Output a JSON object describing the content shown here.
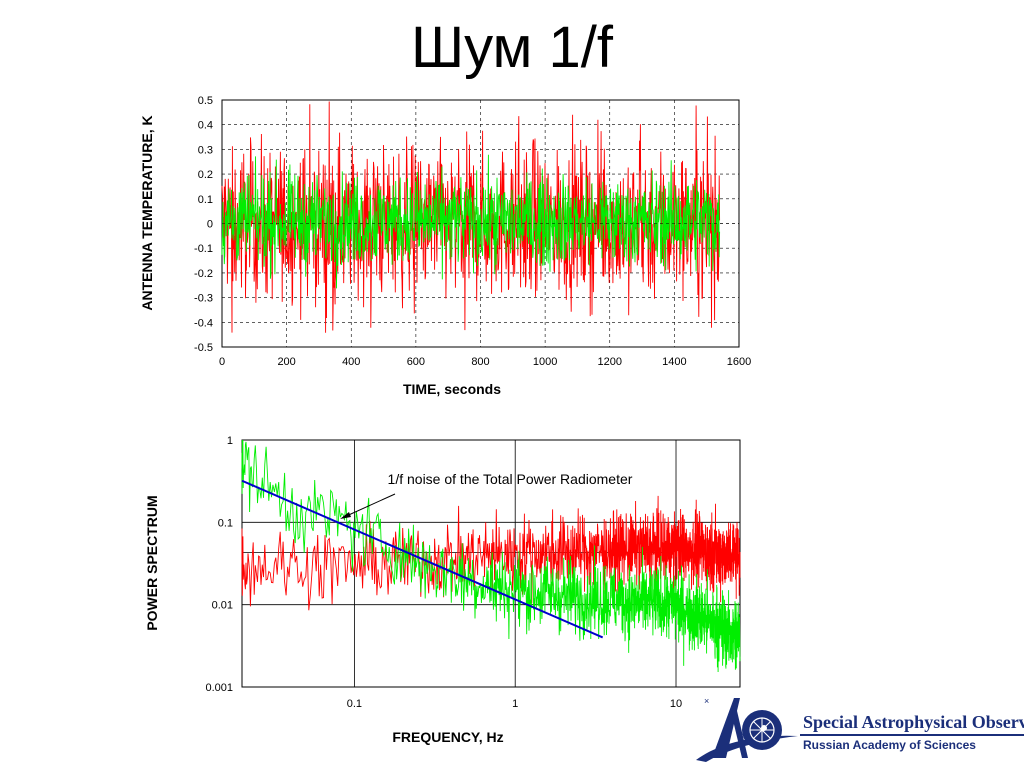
{
  "slide": {
    "title": "Шум 1/f"
  },
  "colors": {
    "signal": "#ff0000",
    "reference": "#00ee00",
    "fit": "#0000cc",
    "grid": "#000000"
  },
  "logo": {
    "icon": "sao-emblem-icon",
    "line1": "Special Astrophysical Observatory",
    "line2": "Russian Academy of Sciences"
  },
  "chart_data": [
    {
      "type": "line",
      "title": "",
      "xlabel": "TIME, seconds",
      "ylabel": "ANTENNA TEMPERATURE, K",
      "xlim": [
        0,
        1600
      ],
      "ylim": [
        -0.5,
        0.5
      ],
      "x_ticks": [
        "0",
        "200",
        "400",
        "600",
        "800",
        "1000",
        "1200",
        "1400",
        "1600"
      ],
      "y_ticks": [
        "0.5",
        "0.4",
        "0.3",
        "0.2",
        "0.1",
        "0",
        "-0.1",
        "-0.2",
        "-0.3",
        "-0.4",
        "-0.5"
      ],
      "grid": true,
      "series": [
        {
          "color": "#ff0000",
          "x_range": [
            0,
            1540
          ],
          "mean": 0.0,
          "envelope": [
            -0.3,
            0.3
          ],
          "extremes": [
            -0.5,
            0.5
          ]
        },
        {
          "color": "#00ee00",
          "x_range": [
            0,
            1540
          ],
          "mean": 0.0,
          "envelope": [
            -0.17,
            0.19
          ]
        }
      ]
    },
    {
      "type": "line",
      "title": "",
      "xlabel": "FREQUENCY, Hz",
      "ylabel": "POWER SPECTRUM",
      "xscale": "log",
      "yscale": "log",
      "xlim": [
        0.02,
        25
      ],
      "ylim": [
        0.001,
        1
      ],
      "x_ticks": [
        "0.1",
        "1",
        "10"
      ],
      "y_ticks": [
        "1",
        "0.1",
        "0.01",
        "0.001"
      ],
      "grid": true,
      "annotation": "1/f noise of the Total Power Radiometer",
      "reference_level": 0.043,
      "series": [
        {
          "color": "#ff0000",
          "x": [
            0.02,
            0.05,
            0.1,
            0.3,
            1,
            3,
            10,
            25
          ],
          "y": [
            0.03,
            0.03,
            0.03,
            0.035,
            0.042,
            0.045,
            0.05,
            0.04
          ]
        },
        {
          "color": "#00ee00",
          "x": [
            0.02,
            0.04,
            0.08,
            0.2,
            0.5,
            1,
            3,
            10,
            25
          ],
          "y": [
            0.55,
            0.15,
            0.11,
            0.04,
            0.02,
            0.015,
            0.012,
            0.01,
            0.004
          ]
        },
        {
          "color": "#0000cc",
          "x": [
            0.02,
            3.5
          ],
          "y": [
            0.32,
            0.004
          ]
        }
      ]
    }
  ]
}
